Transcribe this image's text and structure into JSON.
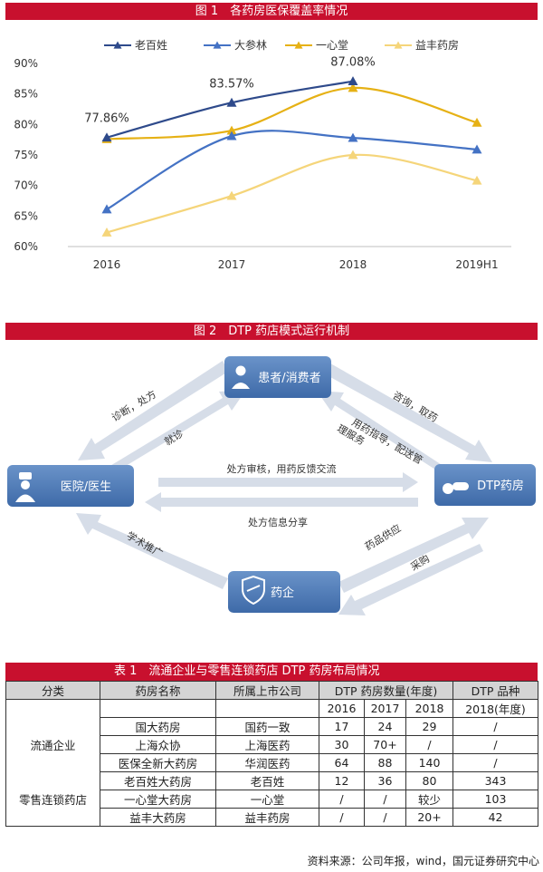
{
  "figure1": {
    "title": "图 1　各药房医保覆盖率情况",
    "legend": [
      "老百姓",
      "大参林",
      "一心堂",
      "益丰药房"
    ],
    "chart_data": {
      "type": "line",
      "categories": [
        "2016",
        "2017",
        "2018",
        "2019H1"
      ],
      "ylim": [
        60,
        90
      ],
      "yticks": [
        "60%",
        "65%",
        "70%",
        "75%",
        "80%",
        "85%",
        "90%"
      ],
      "series": [
        {
          "name": "老百姓",
          "color": "#2e4a8b",
          "marker": "triangle",
          "values": [
            77.86,
            83.57,
            87.08,
            null
          ]
        },
        {
          "name": "大参林",
          "color": "#4472c4",
          "marker": "triangle",
          "values": [
            66.1,
            78.1,
            77.8,
            75.9
          ]
        },
        {
          "name": "一心堂",
          "color": "#e6b115",
          "marker": "triangle",
          "values": [
            77.6,
            79.0,
            86.0,
            80.3
          ]
        },
        {
          "name": "益丰药房",
          "color": "#f5d57a",
          "marker": "triangle",
          "values": [
            62.3,
            68.3,
            75.0,
            70.8
          ]
        }
      ],
      "data_labels": [
        "77.86%",
        "83.57%",
        "87.08%"
      ]
    }
  },
  "figure2": {
    "title": "图 2　DTP 药店模式运行机制",
    "nodes": {
      "patient": "患者/消费者",
      "hospital": "医院/医生",
      "dtp": "DTP药房",
      "pharma": "药企"
    },
    "edges": {
      "diagnose": "诊断，处方",
      "visit": "就诊",
      "consult": "咨询，取药",
      "guide_1": "用药指导，配送管",
      "guide_2": "理服务",
      "review": "处方审核，用药反馈交流",
      "share": "处方信息分享",
      "academic": "学术推广",
      "supply": "药品供应",
      "purchase": "采购"
    }
  },
  "table1": {
    "title": "表 1　流通企业与零售连锁药店 DTP 药房布局情况",
    "headers": {
      "category": "分类",
      "name": "药房名称",
      "company": "所属上市公司",
      "count": "DTP 药房数量(年度)",
      "variety": "DTP 品种"
    },
    "years": [
      "2016",
      "2017",
      "2018",
      "2018(年度)"
    ],
    "groups": [
      "流通企业",
      "零售连锁药店"
    ],
    "rows": [
      [
        "国大药房",
        "国药一致",
        "17",
        "24",
        "29",
        "/"
      ],
      [
        "上海众协",
        "上海医药",
        "30",
        "70+",
        "/",
        "/"
      ],
      [
        "医保全新大药房",
        "华润医药",
        "64",
        "88",
        "140",
        "/"
      ],
      [
        "老百姓大药房",
        "老百姓",
        "12",
        "36",
        "80",
        "343"
      ],
      [
        "一心堂大药房",
        "一心堂",
        "/",
        "/",
        "较少",
        "103"
      ],
      [
        "益丰大药房",
        "益丰药房",
        "/",
        "/",
        "20+",
        "42"
      ]
    ],
    "source": "资料来源：公司年报，wind，国元证券研究中心"
  }
}
